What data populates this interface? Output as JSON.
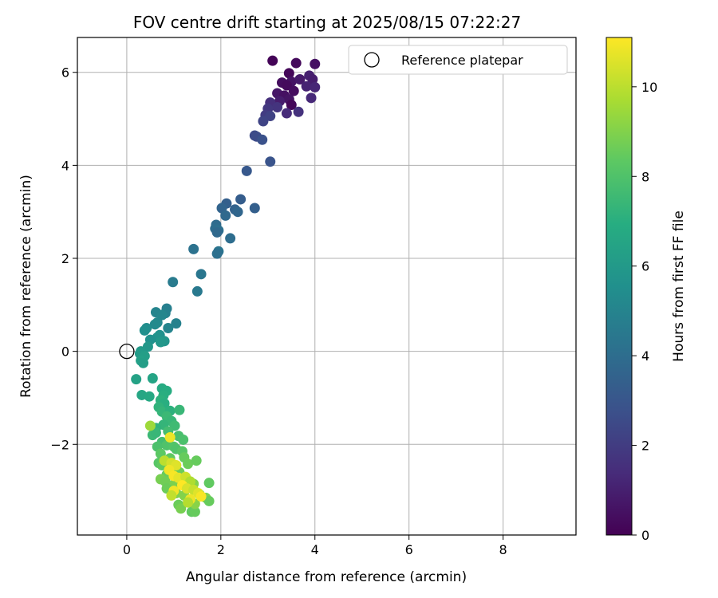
{
  "chart_data": {
    "type": "scatter",
    "title": "FOV centre drift starting at 2025/08/15 07:22:27",
    "xlabel": "Angular distance from reference (arcmin)",
    "ylabel": "Rotation from reference (arcmin)",
    "xlim": [
      -1.05,
      9.55
    ],
    "ylim": [
      -3.95,
      6.75
    ],
    "xticks": [
      0,
      2,
      4,
      6,
      8
    ],
    "yticks": [
      -2,
      0,
      2,
      4,
      6
    ],
    "grid": true,
    "legend": {
      "placement": "top-right",
      "entries": [
        "Reference platepar"
      ]
    },
    "reference_point": {
      "x": 0,
      "y": 0
    },
    "colorbar": {
      "label": "Hours from first FF file",
      "colormap": "viridis",
      "range": [
        0,
        11.1
      ],
      "ticks": [
        0,
        2,
        4,
        6,
        8,
        10
      ]
    },
    "points": [
      {
        "x": 3.1,
        "y": 6.25,
        "c": 0.1
      },
      {
        "x": 3.6,
        "y": 6.2,
        "c": 0.3
      },
      {
        "x": 4.0,
        "y": 6.18,
        "c": 0.5
      },
      {
        "x": 3.45,
        "y": 5.98,
        "c": 0.2
      },
      {
        "x": 3.3,
        "y": 5.78,
        "c": 0.4
      },
      {
        "x": 3.5,
        "y": 5.8,
        "c": 0.6
      },
      {
        "x": 3.4,
        "y": 5.72,
        "c": 0.3
      },
      {
        "x": 3.68,
        "y": 5.85,
        "c": 0.8
      },
      {
        "x": 3.88,
        "y": 5.93,
        "c": 1.0
      },
      {
        "x": 3.95,
        "y": 5.85,
        "c": 0.9
      },
      {
        "x": 3.82,
        "y": 5.7,
        "c": 1.1
      },
      {
        "x": 4.0,
        "y": 5.68,
        "c": 1.2
      },
      {
        "x": 3.2,
        "y": 5.55,
        "c": 0.7
      },
      {
        "x": 3.35,
        "y": 5.5,
        "c": 0.5
      },
      {
        "x": 3.55,
        "y": 5.6,
        "c": 0.4
      },
      {
        "x": 3.45,
        "y": 5.42,
        "c": 0.6
      },
      {
        "x": 3.25,
        "y": 5.38,
        "c": 0.9
      },
      {
        "x": 3.92,
        "y": 5.45,
        "c": 1.3
      },
      {
        "x": 3.05,
        "y": 5.35,
        "c": 1.5
      },
      {
        "x": 3.2,
        "y": 5.25,
        "c": 1.7
      },
      {
        "x": 3.5,
        "y": 5.3,
        "c": 0.2
      },
      {
        "x": 3.0,
        "y": 5.22,
        "c": 1.8
      },
      {
        "x": 3.4,
        "y": 5.12,
        "c": 1.4
      },
      {
        "x": 3.65,
        "y": 5.15,
        "c": 1.6
      },
      {
        "x": 2.95,
        "y": 5.08,
        "c": 2.0
      },
      {
        "x": 3.05,
        "y": 5.06,
        "c": 2.2
      },
      {
        "x": 2.9,
        "y": 4.95,
        "c": 2.3
      },
      {
        "x": 2.72,
        "y": 4.64,
        "c": 2.5
      },
      {
        "x": 2.76,
        "y": 4.62,
        "c": 2.6
      },
      {
        "x": 2.88,
        "y": 4.55,
        "c": 2.8
      },
      {
        "x": 3.05,
        "y": 4.08,
        "c": 2.9
      },
      {
        "x": 2.55,
        "y": 3.88,
        "c": 3.1
      },
      {
        "x": 2.42,
        "y": 3.27,
        "c": 3.3
      },
      {
        "x": 2.12,
        "y": 3.18,
        "c": 3.4
      },
      {
        "x": 2.02,
        "y": 3.08,
        "c": 3.6
      },
      {
        "x": 2.3,
        "y": 3.05,
        "c": 3.5
      },
      {
        "x": 2.36,
        "y": 3.0,
        "c": 3.7
      },
      {
        "x": 2.72,
        "y": 3.08,
        "c": 3.4
      },
      {
        "x": 2.1,
        "y": 2.92,
        "c": 3.8
      },
      {
        "x": 1.9,
        "y": 2.72,
        "c": 3.9
      },
      {
        "x": 1.88,
        "y": 2.64,
        "c": 4.0
      },
      {
        "x": 1.95,
        "y": 2.6,
        "c": 4.1
      },
      {
        "x": 1.92,
        "y": 2.56,
        "c": 3.8
      },
      {
        "x": 2.2,
        "y": 2.43,
        "c": 4.0
      },
      {
        "x": 1.42,
        "y": 2.2,
        "c": 4.2
      },
      {
        "x": 1.95,
        "y": 2.15,
        "c": 4.3
      },
      {
        "x": 1.92,
        "y": 2.1,
        "c": 4.1
      },
      {
        "x": 1.58,
        "y": 1.66,
        "c": 4.4
      },
      {
        "x": 0.98,
        "y": 1.49,
        "c": 4.6
      },
      {
        "x": 1.5,
        "y": 1.29,
        "c": 4.5
      },
      {
        "x": 0.85,
        "y": 0.92,
        "c": 4.8
      },
      {
        "x": 0.62,
        "y": 0.84,
        "c": 5.0
      },
      {
        "x": 0.82,
        "y": 0.82,
        "c": 4.9
      },
      {
        "x": 0.75,
        "y": 0.78,
        "c": 5.1
      },
      {
        "x": 0.65,
        "y": 0.62,
        "c": 5.2
      },
      {
        "x": 0.6,
        "y": 0.58,
        "c": 5.3
      },
      {
        "x": 1.05,
        "y": 0.6,
        "c": 4.9
      },
      {
        "x": 0.88,
        "y": 0.5,
        "c": 5.0
      },
      {
        "x": 0.42,
        "y": 0.5,
        "c": 5.4
      },
      {
        "x": 0.38,
        "y": 0.45,
        "c": 5.5
      },
      {
        "x": 0.7,
        "y": 0.35,
        "c": 5.6
      },
      {
        "x": 0.65,
        "y": 0.3,
        "c": 5.7
      },
      {
        "x": 0.8,
        "y": 0.22,
        "c": 5.8
      },
      {
        "x": 0.72,
        "y": 0.2,
        "c": 5.9
      },
      {
        "x": 0.5,
        "y": 0.25,
        "c": 5.6
      },
      {
        "x": 0.45,
        "y": 0.1,
        "c": 5.9
      },
      {
        "x": 0.3,
        "y": 0.0,
        "c": 6.0
      },
      {
        "x": 0.28,
        "y": -0.05,
        "c": 6.1
      },
      {
        "x": 0.38,
        "y": -0.1,
        "c": 6.2
      },
      {
        "x": 0.3,
        "y": -0.2,
        "c": 6.3
      },
      {
        "x": 0.35,
        "y": -0.25,
        "c": 6.2
      },
      {
        "x": 0.2,
        "y": -0.6,
        "c": 6.4
      },
      {
        "x": 0.55,
        "y": -0.58,
        "c": 6.5
      },
      {
        "x": 0.32,
        "y": -0.94,
        "c": 6.6
      },
      {
        "x": 0.48,
        "y": -0.97,
        "c": 6.7
      },
      {
        "x": 0.75,
        "y": -0.8,
        "c": 6.8
      },
      {
        "x": 0.85,
        "y": -0.85,
        "c": 6.9
      },
      {
        "x": 0.78,
        "y": -0.95,
        "c": 7.0
      },
      {
        "x": 0.72,
        "y": -1.05,
        "c": 7.1
      },
      {
        "x": 0.8,
        "y": -1.12,
        "c": 7.0
      },
      {
        "x": 0.68,
        "y": -1.2,
        "c": 7.2
      },
      {
        "x": 0.75,
        "y": -1.3,
        "c": 7.3
      },
      {
        "x": 0.92,
        "y": -1.28,
        "c": 7.1
      },
      {
        "x": 1.12,
        "y": -1.26,
        "c": 7.4
      },
      {
        "x": 0.85,
        "y": -1.4,
        "c": 7.5
      },
      {
        "x": 0.95,
        "y": -1.5,
        "c": 7.4
      },
      {
        "x": 1.02,
        "y": -1.6,
        "c": 7.6
      },
      {
        "x": 0.78,
        "y": -1.58,
        "c": 7.3
      },
      {
        "x": 0.62,
        "y": -1.65,
        "c": 7.2
      },
      {
        "x": 0.55,
        "y": -1.8,
        "c": 7.5
      },
      {
        "x": 0.62,
        "y": -1.75,
        "c": 7.4
      },
      {
        "x": 0.88,
        "y": -1.72,
        "c": 7.7
      },
      {
        "x": 1.1,
        "y": -1.82,
        "c": 7.8
      },
      {
        "x": 1.2,
        "y": -1.9,
        "c": 7.9
      },
      {
        "x": 0.75,
        "y": -1.95,
        "c": 7.7
      },
      {
        "x": 0.85,
        "y": -2.02,
        "c": 8.0
      },
      {
        "x": 1.0,
        "y": -2.05,
        "c": 8.1
      },
      {
        "x": 1.05,
        "y": -2.1,
        "c": 8.0
      },
      {
        "x": 1.18,
        "y": -2.15,
        "c": 8.2
      },
      {
        "x": 0.65,
        "y": -2.05,
        "c": 7.9
      },
      {
        "x": 0.72,
        "y": -2.2,
        "c": 8.3
      },
      {
        "x": 0.92,
        "y": -2.3,
        "c": 8.4
      },
      {
        "x": 1.22,
        "y": -2.28,
        "c": 8.5
      },
      {
        "x": 1.3,
        "y": -2.42,
        "c": 8.6
      },
      {
        "x": 1.48,
        "y": -2.35,
        "c": 8.5
      },
      {
        "x": 0.68,
        "y": -2.4,
        "c": 8.2
      },
      {
        "x": 0.75,
        "y": -2.45,
        "c": 8.4
      },
      {
        "x": 1.0,
        "y": -2.55,
        "c": 8.7
      },
      {
        "x": 1.12,
        "y": -2.6,
        "c": 8.6
      },
      {
        "x": 0.85,
        "y": -2.65,
        "c": 8.5
      },
      {
        "x": 0.72,
        "y": -2.75,
        "c": 8.8
      },
      {
        "x": 0.82,
        "y": -2.8,
        "c": 8.7
      },
      {
        "x": 1.02,
        "y": -2.85,
        "c": 8.9
      },
      {
        "x": 1.3,
        "y": -2.78,
        "c": 8.8
      },
      {
        "x": 1.42,
        "y": -2.85,
        "c": 9.0
      },
      {
        "x": 1.75,
        "y": -2.83,
        "c": 8.4
      },
      {
        "x": 0.85,
        "y": -2.95,
        "c": 8.6
      },
      {
        "x": 1.05,
        "y": -3.05,
        "c": 8.9
      },
      {
        "x": 1.22,
        "y": -3.1,
        "c": 9.0
      },
      {
        "x": 1.55,
        "y": -3.08,
        "c": 8.7
      },
      {
        "x": 1.68,
        "y": -3.15,
        "c": 8.9
      },
      {
        "x": 1.75,
        "y": -3.22,
        "c": 8.5
      },
      {
        "x": 1.1,
        "y": -3.3,
        "c": 8.6
      },
      {
        "x": 1.38,
        "y": -3.45,
        "c": 8.4
      },
      {
        "x": 1.45,
        "y": -3.45,
        "c": 8.5
      },
      {
        "x": 1.15,
        "y": -3.38,
        "c": 8.8
      },
      {
        "x": 1.45,
        "y": -3.28,
        "c": 9.1
      },
      {
        "x": 0.5,
        "y": -1.6,
        "c": 9.5
      },
      {
        "x": 0.92,
        "y": -1.85,
        "c": 10.8
      },
      {
        "x": 0.8,
        "y": -2.35,
        "c": 10.0
      },
      {
        "x": 0.95,
        "y": -2.4,
        "c": 10.4
      },
      {
        "x": 1.05,
        "y": -2.45,
        "c": 10.6
      },
      {
        "x": 0.9,
        "y": -2.55,
        "c": 10.9
      },
      {
        "x": 1.0,
        "y": -2.68,
        "c": 11.0
      },
      {
        "x": 1.1,
        "y": -2.72,
        "c": 10.7
      },
      {
        "x": 1.25,
        "y": -2.7,
        "c": 10.3
      },
      {
        "x": 1.35,
        "y": -2.8,
        "c": 9.8
      },
      {
        "x": 1.18,
        "y": -2.88,
        "c": 11.1
      },
      {
        "x": 1.28,
        "y": -2.95,
        "c": 10.5
      },
      {
        "x": 1.42,
        "y": -2.98,
        "c": 10.2
      },
      {
        "x": 1.0,
        "y": -3.0,
        "c": 10.9
      },
      {
        "x": 0.95,
        "y": -3.1,
        "c": 10.1
      },
      {
        "x": 1.52,
        "y": -3.05,
        "c": 10.6
      },
      {
        "x": 1.58,
        "y": -3.12,
        "c": 11.0
      },
      {
        "x": 1.35,
        "y": -3.18,
        "c": 10.8
      },
      {
        "x": 1.3,
        "y": -3.25,
        "c": 9.9
      }
    ]
  }
}
